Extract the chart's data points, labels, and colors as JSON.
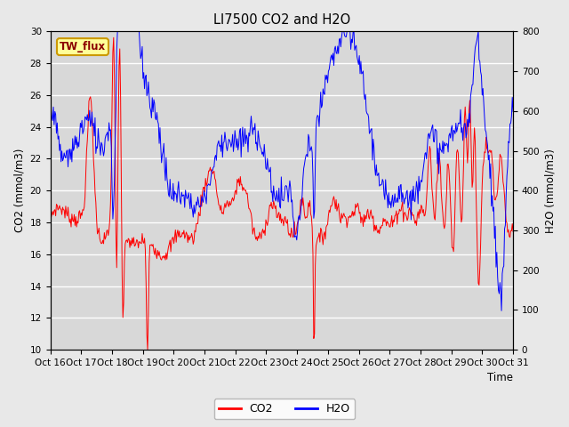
{
  "title": "LI7500 CO2 and H2O",
  "xlabel": "Time",
  "ylabel_left": "CO2 (mmol/m3)",
  "ylabel_right": "H2O (mmol/m3)",
  "ylim_left": [
    10,
    30
  ],
  "ylim_right": [
    0,
    800
  ],
  "yticks_left": [
    10,
    12,
    14,
    16,
    18,
    20,
    22,
    24,
    26,
    28,
    30
  ],
  "yticks_right": [
    0,
    100,
    200,
    300,
    400,
    500,
    600,
    700,
    800
  ],
  "xtick_labels": [
    "Oct 16",
    "Oct 17",
    "Oct 18",
    "Oct 19",
    "Oct 20",
    "Oct 21",
    "Oct 22",
    "Oct 23",
    "Oct 24",
    "Oct 25",
    "Oct 26",
    "Oct 27",
    "Oct 28",
    "Oct 29",
    "Oct 30",
    "Oct 31"
  ],
  "co2_color": "#ff0000",
  "h2o_color": "#0000ff",
  "fig_bg_color": "#e8e8e8",
  "plot_bg_color": "#d8d8d8",
  "tag_label": "TW_flux",
  "tag_fg": "#8B0000",
  "tag_bg": "#ffff99",
  "tag_edge": "#cc9900",
  "n_points": 600,
  "seed": 7
}
